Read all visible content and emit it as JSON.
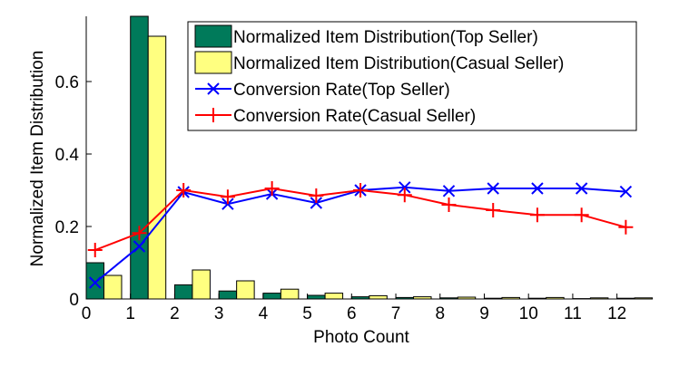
{
  "chart_data": {
    "type": "bar",
    "xlabel": "Photo Count",
    "ylabel": "Normalized Item Distribution",
    "xlim": [
      0,
      12.5
    ],
    "ylim": [
      0,
      0.78
    ],
    "x_ticks": [
      0,
      1,
      2,
      3,
      4,
      5,
      6,
      7,
      8,
      9,
      10,
      11,
      12
    ],
    "x_tick_labels": [
      "0",
      "1",
      "2",
      "3",
      "4",
      "5",
      "6",
      "7",
      "8",
      "9",
      "10",
      "11",
      "12"
    ],
    "y_ticks": [
      0,
      0.2,
      0.4,
      0.6
    ],
    "y_tick_labels": [
      "0",
      "0.2",
      "0.4",
      "0.6"
    ],
    "grid": false,
    "legend_position": "top-right",
    "bar_series": [
      {
        "name": "Normalized Item Distribution(Top Seller)",
        "color": "#007a5a",
        "values": [
          0.1,
          0.78,
          0.039,
          0.022,
          0.016,
          0.01,
          0.006,
          0.004,
          0.003,
          0.002,
          0.002,
          0.001,
          0.002
        ]
      },
      {
        "name": "Normalized Item Distribution(Casual Seller)",
        "color": "#ffff80",
        "values": [
          0.065,
          0.725,
          0.08,
          0.05,
          0.027,
          0.016,
          0.009,
          0.006,
          0.005,
          0.004,
          0.004,
          0.003,
          0.003
        ]
      }
    ],
    "line_series": [
      {
        "name": "Conversion Rate(Top Seller)",
        "color": "#0000ff",
        "marker": "x",
        "x": [
          0.2,
          1.2,
          2.2,
          3.2,
          4.2,
          5.2,
          6.2,
          7.2,
          8.2,
          9.2,
          10.2,
          11.2,
          12.2
        ],
        "values": [
          0.045,
          0.145,
          0.295,
          0.262,
          0.29,
          0.265,
          0.3,
          0.308,
          0.298,
          0.305,
          0.305,
          0.305,
          0.296
        ]
      },
      {
        "name": "Conversion Rate(Casual Seller)",
        "color": "#ff0000",
        "marker": "+",
        "x": [
          0.2,
          1.2,
          2.2,
          3.2,
          4.2,
          5.2,
          6.2,
          7.2,
          8.2,
          9.2,
          10.2,
          11.2,
          12.2
        ],
        "values": [
          0.135,
          0.182,
          0.3,
          0.282,
          0.305,
          0.285,
          0.3,
          0.287,
          0.26,
          0.245,
          0.232,
          0.232,
          0.198
        ]
      }
    ]
  }
}
